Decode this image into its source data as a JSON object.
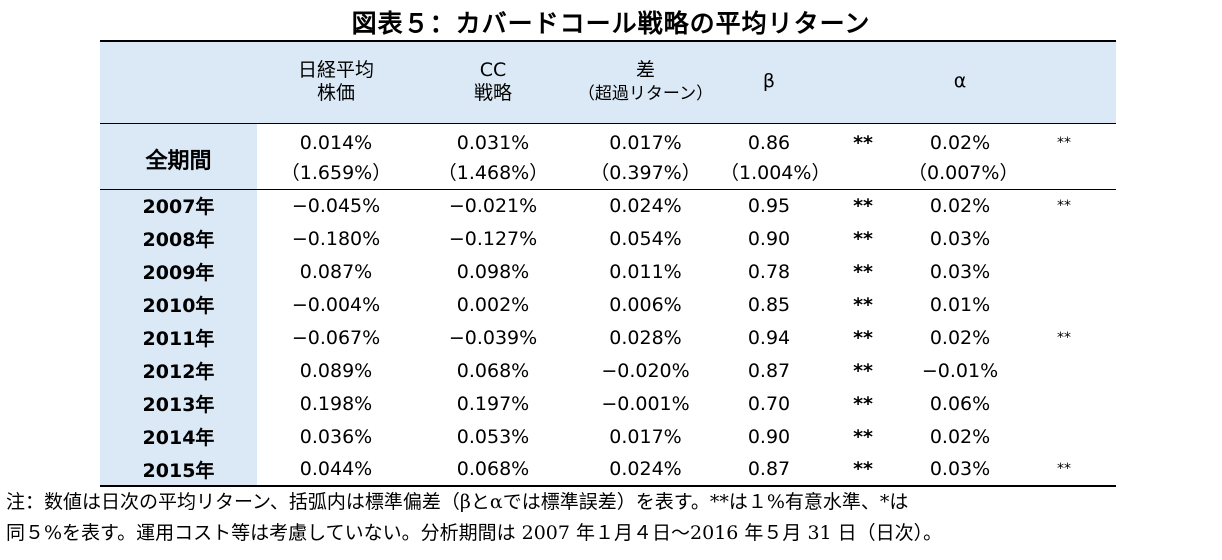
{
  "title": "図表５：カバードコール戦略の平均リターン",
  "headers": {
    "nikkei_l1": "日経平均",
    "nikkei_l2": "株価",
    "cc_l1": "CC",
    "cc_l2": "戦略",
    "diff_l1": "差",
    "diff_l2": "（超過リターン）",
    "beta": "β",
    "alpha": "α"
  },
  "full_period": {
    "label": "全期間",
    "nikkei": "0.014%",
    "nikkei_sd": "（1.659%）",
    "cc": "0.031%",
    "cc_sd": "（1.468%）",
    "diff": "0.017%",
    "diff_sd": "（0.397%）",
    "beta": "0.86",
    "beta_sd": "（1.004%）",
    "beta_sig": "**",
    "alpha": "0.02%",
    "alpha_sd": "（0.007%）",
    "alpha_sig": "**"
  },
  "years": [
    {
      "year": "2007年",
      "nikkei": "−0.045%",
      "cc": "−0.021%",
      "diff": "0.024%",
      "beta": "0.95",
      "beta_sig": "**",
      "alpha": "0.02%",
      "alpha_sig": "**"
    },
    {
      "year": "2008年",
      "nikkei": "−0.180%",
      "cc": "−0.127%",
      "diff": "0.054%",
      "beta": "0.90",
      "beta_sig": "**",
      "alpha": "0.03%",
      "alpha_sig": ""
    },
    {
      "year": "2009年",
      "nikkei": "0.087%",
      "cc": "0.098%",
      "diff": "0.011%",
      "beta": "0.78",
      "beta_sig": "**",
      "alpha": "0.03%",
      "alpha_sig": ""
    },
    {
      "year": "2010年",
      "nikkei": "−0.004%",
      "cc": "0.002%",
      "diff": "0.006%",
      "beta": "0.85",
      "beta_sig": "**",
      "alpha": "0.01%",
      "alpha_sig": ""
    },
    {
      "year": "2011年",
      "nikkei": "−0.067%",
      "cc": "−0.039%",
      "diff": "0.028%",
      "beta": "0.94",
      "beta_sig": "**",
      "alpha": "0.02%",
      "alpha_sig": "**"
    },
    {
      "year": "2012年",
      "nikkei": "0.089%",
      "cc": "0.068%",
      "diff": "−0.020%",
      "beta": "0.87",
      "beta_sig": "**",
      "alpha": "−0.01%",
      "alpha_sig": ""
    },
    {
      "year": "2013年",
      "nikkei": "0.198%",
      "cc": "0.197%",
      "diff": "−0.001%",
      "beta": "0.70",
      "beta_sig": "**",
      "alpha": "0.06%",
      "alpha_sig": ""
    },
    {
      "year": "2014年",
      "nikkei": "0.036%",
      "cc": "0.053%",
      "diff": "0.017%",
      "beta": "0.90",
      "beta_sig": "**",
      "alpha": "0.02%",
      "alpha_sig": ""
    },
    {
      "year": "2015年",
      "nikkei": "0.044%",
      "cc": "0.068%",
      "diff": "0.024%",
      "beta": "0.87",
      "beta_sig": "**",
      "alpha": "0.03%",
      "alpha_sig": "**"
    }
  ],
  "note_line1": "注：数値は日次の平均リターン、括弧内は標準偏差（βとαでは標準誤差）を表す。**は１%有意水準、*は",
  "note_line2": "同５%を表す。運用コスト等は考慮していない。分析期間は 2007 年１月４日～2016 年５月 31 日（日次）。"
}
